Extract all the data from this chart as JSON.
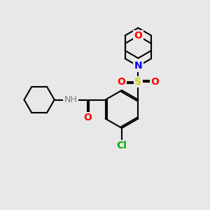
{
  "background_color": "#e8e8e8",
  "bond_color": "#000000",
  "atom_colors": {
    "O": "#ff0000",
    "N": "#0000ff",
    "S": "#cccc00",
    "Cl": "#00aa00",
    "C": "#000000",
    "H": "#808080"
  },
  "figsize": [
    3.0,
    3.0
  ],
  "dpi": 100
}
